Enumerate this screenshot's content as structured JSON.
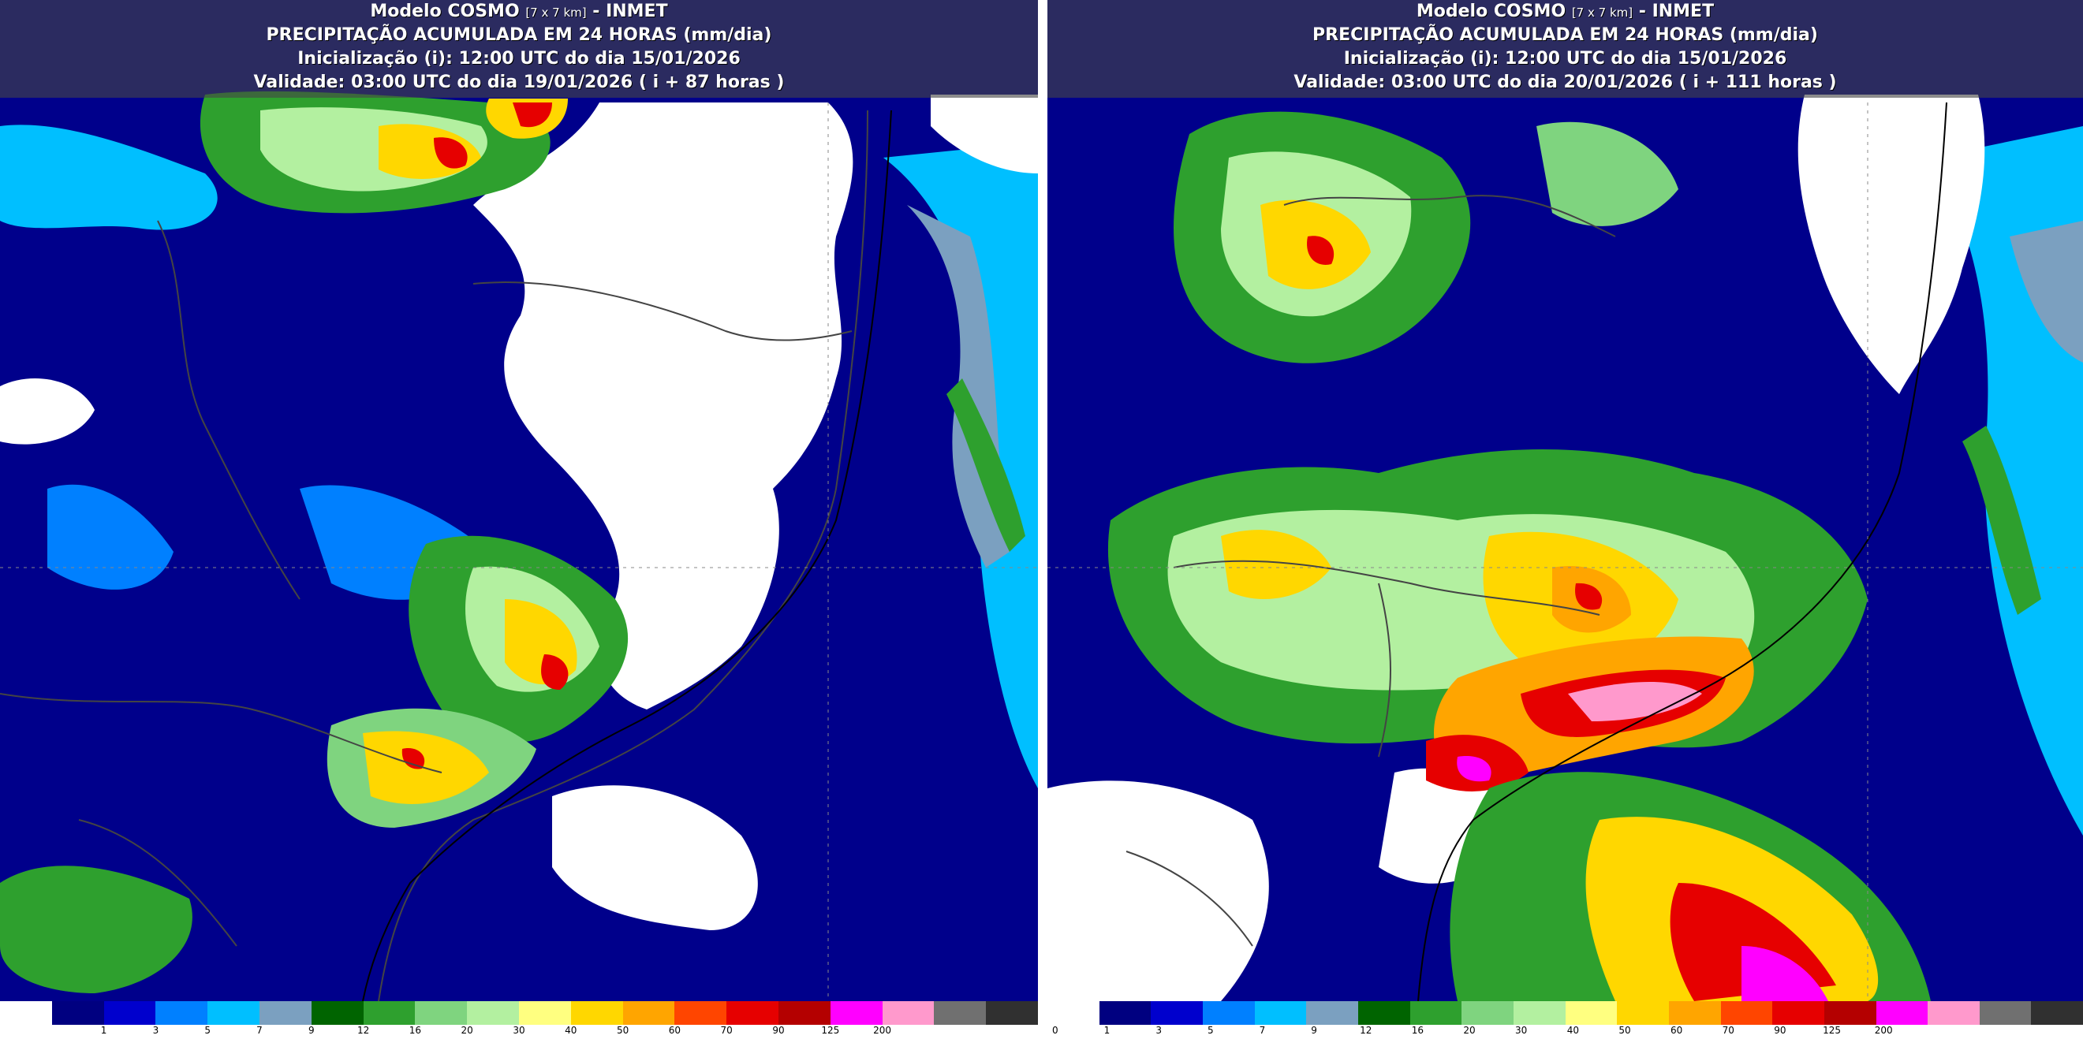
{
  "panels": [
    {
      "title_model": "Modelo COSMO",
      "title_res": "[7 x 7 km]",
      "title_org": "- INMET",
      "title_var": "PRECIPITAÇÃO ACUMULADA EM 24 HORAS (mm/dia)",
      "init": "Inicialização (i): 12:00 UTC do dia 15/01/2026",
      "valid": "Validade: 03:00 UTC do dia 19/01/2026 ( i + 87 horas )"
    },
    {
      "title_model": "Modelo COSMO",
      "title_res": "[7 x 7 km]",
      "title_org": "- INMET",
      "title_var": "PRECIPITAÇÃO ACUMULADA EM 24 HORAS (mm/dia)",
      "init": "Inicialização (i): 12:00 UTC do dia 15/01/2026",
      "valid": "Validade: 03:00 UTC do dia 20/01/2026 ( i + 111 horas )"
    }
  ],
  "legend": {
    "colors": [
      "#ffffff",
      "#000080",
      "#0000cd",
      "#0080ff",
      "#00bfff",
      "#7ba0c0",
      "#006400",
      "#2ea02e",
      "#7fd47f",
      "#b3f0a0",
      "#ffff80",
      "#ffd700",
      "#ffa500",
      "#ff4500",
      "#e60000",
      "#b40000",
      "#ff00ff",
      "#ff99cc",
      "#707070",
      "#303030"
    ],
    "ticks_left": [
      "1",
      "3",
      "5",
      "7",
      "9",
      "12",
      "16",
      "20",
      "30",
      "40",
      "50",
      "60",
      "70",
      "90",
      "125",
      "200"
    ],
    "ticks_right": [
      "0",
      "1",
      "3",
      "5",
      "7",
      "9",
      "12",
      "16",
      "20",
      "30",
      "40",
      "50",
      "60",
      "70",
      "90",
      "125",
      "200"
    ]
  }
}
